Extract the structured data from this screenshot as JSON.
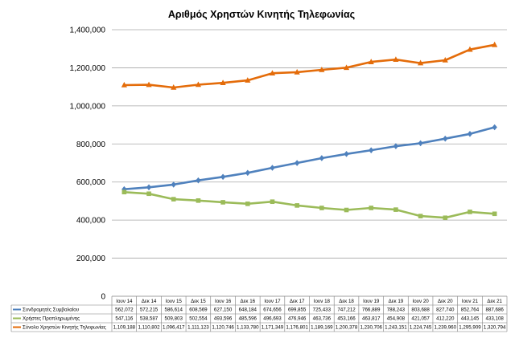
{
  "chart_data": {
    "type": "line",
    "title": "Αριθμός Χρηστών Κινητής Τηλεφωνίας",
    "categories": [
      "Ιουν 14",
      "Δεκ 14",
      "Ιουν 15",
      "Δεκ 15",
      "Ιουν 16",
      "Δεκ 16",
      "Ιουν 17",
      "Δεκ 17",
      "Ιουν 18",
      "Δεκ 18",
      "Ιουν 19",
      "Δεκ 19",
      "Ιουν 20",
      "Δεκ 20",
      "Ιουν 21",
      "Δεκ 21"
    ],
    "yticks": [
      "0",
      "200,000",
      "400,000",
      "600,000",
      "800,000",
      "1,000,000",
      "1,200,000",
      "1,400,000"
    ],
    "ylim": [
      0,
      1400000
    ],
    "grid": true,
    "legend": "data table below chart",
    "series": [
      {
        "name": "Συνδρομητές Συμβολαίου",
        "color": "#4F81BD",
        "marker": "diamond",
        "values": [
          562072,
          572215,
          586614,
          608569,
          627150,
          648184,
          674656,
          699855,
          725433,
          747212,
          766889,
          788243,
          803688,
          827740,
          852764,
          887686
        ],
        "labels": [
          "562,072",
          "572,215",
          "586,614",
          "608,569",
          "627,150",
          "648,184",
          "674,656",
          "699,855",
          "725,433",
          "747,212",
          "766,889",
          "788,243",
          "803,688",
          "827,740",
          "852,764",
          "887,686"
        ]
      },
      {
        "name": "Χρήστες Προπληρωμένης",
        "color": "#9BBB59",
        "marker": "square",
        "values": [
          547116,
          538587,
          509803,
          502554,
          493596,
          485596,
          496693,
          476946,
          463736,
          453166,
          463817,
          454908,
          421057,
          412220,
          443145,
          433108
        ],
        "labels": [
          "547,116",
          "538,587",
          "509,803",
          "502,554",
          "493,596",
          "485,596",
          "496,693",
          "476,946",
          "463,736",
          "453,166",
          "463,817",
          "454,908",
          "421,057",
          "412,220",
          "443,145",
          "433,108"
        ]
      },
      {
        "name": "Σύνολο Χρηστών Κινητής Τηλεφωνίας",
        "color": "#E46C0A",
        "marker": "triangle",
        "values": [
          1109188,
          1110802,
          1096417,
          1111123,
          1120746,
          1133780,
          1171349,
          1176801,
          1189169,
          1200378,
          1230706,
          1243151,
          1224745,
          1239960,
          1295909,
          1320794
        ],
        "labels": [
          "1,109,188",
          "1,110,802",
          "1,096,417",
          "1,111,123",
          "1,120,746",
          "1,133,780",
          "1,171,349",
          "1,176,801",
          "1,189,169",
          "1,200,378",
          "1,230,706",
          "1,243,151",
          "1,224,745",
          "1,239,960",
          "1,295,909",
          "1,320,794"
        ]
      }
    ]
  }
}
